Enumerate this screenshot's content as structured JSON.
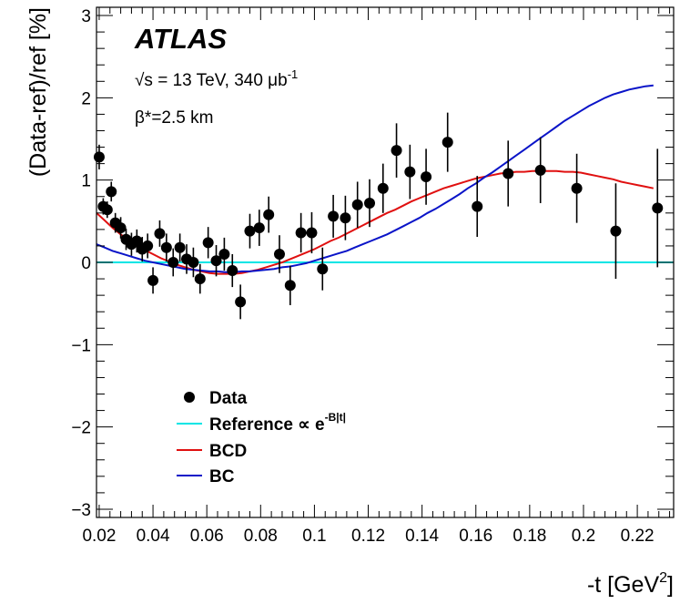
{
  "chart_data": {
    "type": "scatter",
    "experiment": "ATLAS",
    "energy_label": "√s = 13 TeV, 340 μb",
    "energy_sup": "-1",
    "beta_label": "β*=2.5 km",
    "xlabel": "-t [GeV",
    "xlabel_sup": "2",
    "xlabel_end": "]",
    "ylabel": "(Data-ref)/ref [%]",
    "xlim": [
      0.019,
      0.2335
    ],
    "ylim": [
      -3.1,
      3.1
    ],
    "xticks": [
      0.02,
      0.04,
      0.06,
      0.08,
      0.1,
      0.12,
      0.14,
      0.16,
      0.18,
      0.2,
      0.22
    ],
    "xtick_labels": [
      "0.02",
      "0.04",
      "0.06",
      "0.08",
      "0.1",
      "0.12",
      "0.14",
      "0.16",
      "0.18",
      "0.2",
      "0.22"
    ],
    "yticks": [
      -3,
      -2,
      -1,
      0,
      1,
      2,
      3
    ],
    "ytick_labels": [
      "−3",
      "−2",
      "−1",
      "0",
      "1",
      "2",
      "3"
    ],
    "legend": {
      "placement": "bottom-left",
      "data_label": "Data",
      "reference_label": "Reference  ∝ e",
      "reference_sup": "-B|t|",
      "bcd_label": "BCD",
      "bc_label": "BC"
    },
    "colors": {
      "data": "#000000",
      "reference": "#00e5e5",
      "bcd": "#e01010",
      "bc": "#0a14c8"
    },
    "data_points": [
      {
        "x": 0.02,
        "y": 1.28,
        "err": 0.15
      },
      {
        "x": 0.0215,
        "y": 0.68,
        "err": 0.1
      },
      {
        "x": 0.023,
        "y": 0.64,
        "err": 0.1
      },
      {
        "x": 0.0245,
        "y": 0.86,
        "err": 0.12
      },
      {
        "x": 0.026,
        "y": 0.48,
        "err": 0.12
      },
      {
        "x": 0.028,
        "y": 0.42,
        "err": 0.13
      },
      {
        "x": 0.03,
        "y": 0.28,
        "err": 0.13
      },
      {
        "x": 0.032,
        "y": 0.22,
        "err": 0.14
      },
      {
        "x": 0.034,
        "y": 0.26,
        "err": 0.14
      },
      {
        "x": 0.036,
        "y": 0.16,
        "err": 0.15
      },
      {
        "x": 0.038,
        "y": 0.2,
        "err": 0.15
      },
      {
        "x": 0.04,
        "y": -0.22,
        "err": 0.16
      },
      {
        "x": 0.0425,
        "y": 0.35,
        "err": 0.16
      },
      {
        "x": 0.045,
        "y": 0.18,
        "err": 0.17
      },
      {
        "x": 0.0475,
        "y": 0.0,
        "err": 0.17
      },
      {
        "x": 0.05,
        "y": 0.18,
        "err": 0.17
      },
      {
        "x": 0.0525,
        "y": 0.04,
        "err": 0.18
      },
      {
        "x": 0.055,
        "y": 0.0,
        "err": 0.18
      },
      {
        "x": 0.0575,
        "y": -0.2,
        "err": 0.18
      },
      {
        "x": 0.0605,
        "y": 0.24,
        "err": 0.19
      },
      {
        "x": 0.0635,
        "y": 0.02,
        "err": 0.19
      },
      {
        "x": 0.0665,
        "y": 0.1,
        "err": 0.2
      },
      {
        "x": 0.0695,
        "y": -0.1,
        "err": 0.2
      },
      {
        "x": 0.0725,
        "y": -0.48,
        "err": 0.21
      },
      {
        "x": 0.076,
        "y": 0.38,
        "err": 0.21
      },
      {
        "x": 0.0795,
        "y": 0.42,
        "err": 0.22
      },
      {
        "x": 0.083,
        "y": 0.58,
        "err": 0.22
      },
      {
        "x": 0.087,
        "y": 0.1,
        "err": 0.23
      },
      {
        "x": 0.091,
        "y": -0.28,
        "err": 0.24
      },
      {
        "x": 0.095,
        "y": 0.36,
        "err": 0.24
      },
      {
        "x": 0.099,
        "y": 0.36,
        "err": 0.25
      },
      {
        "x": 0.103,
        "y": -0.08,
        "err": 0.26
      },
      {
        "x": 0.107,
        "y": 0.56,
        "err": 0.26
      },
      {
        "x": 0.1115,
        "y": 0.54,
        "err": 0.27
      },
      {
        "x": 0.116,
        "y": 0.7,
        "err": 0.28
      },
      {
        "x": 0.1205,
        "y": 0.72,
        "err": 0.29
      },
      {
        "x": 0.1255,
        "y": 0.9,
        "err": 0.3
      },
      {
        "x": 0.1305,
        "y": 1.36,
        "err": 0.33
      },
      {
        "x": 0.1355,
        "y": 1.1,
        "err": 0.33
      },
      {
        "x": 0.1415,
        "y": 1.04,
        "err": 0.34
      },
      {
        "x": 0.1495,
        "y": 1.46,
        "err": 0.36
      },
      {
        "x": 0.1605,
        "y": 0.68,
        "err": 0.37
      },
      {
        "x": 0.172,
        "y": 1.08,
        "err": 0.4
      },
      {
        "x": 0.184,
        "y": 1.12,
        "err": 0.4
      },
      {
        "x": 0.1975,
        "y": 0.9,
        "err": 0.42
      },
      {
        "x": 0.212,
        "y": 0.38,
        "err": 0.58
      },
      {
        "x": 0.2275,
        "y": 0.66,
        "err": 0.72
      }
    ],
    "series": [
      {
        "color": "#00e5e5",
        "x": [
          0.019,
          0.2335
        ],
        "y": [
          0,
          0
        ]
      },
      {
        "color": "#e01010",
        "x": [
          0.019,
          0.022,
          0.025,
          0.028,
          0.031,
          0.034,
          0.037,
          0.04,
          0.043,
          0.046,
          0.049,
          0.052,
          0.055,
          0.058,
          0.061,
          0.064,
          0.067,
          0.07,
          0.073,
          0.076,
          0.079,
          0.082,
          0.085,
          0.088,
          0.091,
          0.094,
          0.097,
          0.1,
          0.103,
          0.106,
          0.109,
          0.112,
          0.115,
          0.118,
          0.121,
          0.124,
          0.127,
          0.13,
          0.133,
          0.136,
          0.139,
          0.142,
          0.145,
          0.148,
          0.151,
          0.154,
          0.157,
          0.16,
          0.163,
          0.166,
          0.169,
          0.172,
          0.175,
          0.178,
          0.181,
          0.184,
          0.187,
          0.19,
          0.193,
          0.196,
          0.199,
          0.202,
          0.205,
          0.208,
          0.211,
          0.214,
          0.217,
          0.22,
          0.223,
          0.226
        ],
        "y": [
          0.6,
          0.51,
          0.42,
          0.34,
          0.27,
          0.21,
          0.15,
          0.1,
          0.05,
          0.01,
          -0.03,
          -0.06,
          -0.09,
          -0.11,
          -0.13,
          -0.14,
          -0.14,
          -0.14,
          -0.13,
          -0.11,
          -0.09,
          -0.06,
          -0.03,
          0.0,
          0.04,
          0.08,
          0.12,
          0.16,
          0.21,
          0.26,
          0.3,
          0.35,
          0.4,
          0.45,
          0.5,
          0.55,
          0.6,
          0.64,
          0.69,
          0.74,
          0.78,
          0.82,
          0.86,
          0.9,
          0.93,
          0.96,
          0.99,
          1.02,
          1.04,
          1.06,
          1.08,
          1.09,
          1.1,
          1.1,
          1.11,
          1.11,
          1.11,
          1.11,
          1.1,
          1.1,
          1.09,
          1.07,
          1.05,
          1.03,
          1.01,
          0.98,
          0.96,
          0.94,
          0.92,
          0.9
        ]
      },
      {
        "color": "#0a14c8",
        "x": [
          0.019,
          0.022,
          0.025,
          0.028,
          0.031,
          0.034,
          0.037,
          0.04,
          0.043,
          0.046,
          0.049,
          0.052,
          0.055,
          0.058,
          0.061,
          0.064,
          0.067,
          0.07,
          0.073,
          0.076,
          0.079,
          0.082,
          0.085,
          0.088,
          0.091,
          0.094,
          0.097,
          0.1,
          0.103,
          0.106,
          0.109,
          0.112,
          0.115,
          0.118,
          0.121,
          0.124,
          0.127,
          0.13,
          0.133,
          0.136,
          0.139,
          0.142,
          0.145,
          0.148,
          0.151,
          0.154,
          0.157,
          0.16,
          0.163,
          0.166,
          0.169,
          0.172,
          0.175,
          0.178,
          0.181,
          0.184,
          0.187,
          0.19,
          0.193,
          0.196,
          0.199,
          0.202,
          0.205,
          0.208,
          0.211,
          0.214,
          0.217,
          0.22,
          0.223,
          0.226
        ],
        "y": [
          0.22,
          0.18,
          0.14,
          0.11,
          0.08,
          0.05,
          0.02,
          0.0,
          -0.02,
          -0.04,
          -0.06,
          -0.08,
          -0.09,
          -0.1,
          -0.11,
          -0.11,
          -0.12,
          -0.12,
          -0.11,
          -0.11,
          -0.1,
          -0.09,
          -0.08,
          -0.06,
          -0.05,
          -0.03,
          -0.01,
          0.02,
          0.05,
          0.08,
          0.11,
          0.14,
          0.18,
          0.22,
          0.26,
          0.3,
          0.34,
          0.39,
          0.44,
          0.49,
          0.54,
          0.6,
          0.65,
          0.71,
          0.77,
          0.83,
          0.9,
          0.96,
          1.03,
          1.09,
          1.16,
          1.23,
          1.3,
          1.37,
          1.44,
          1.51,
          1.58,
          1.65,
          1.72,
          1.78,
          1.84,
          1.9,
          1.95,
          2.0,
          2.04,
          2.07,
          2.1,
          2.12,
          2.14,
          2.15
        ]
      }
    ]
  }
}
